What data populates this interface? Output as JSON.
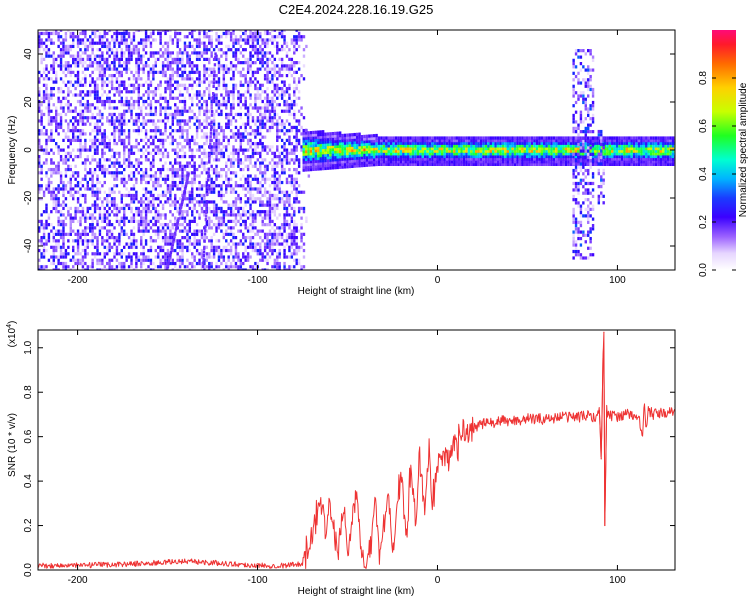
{
  "title": "C2E4.2024.228.16.19.G25",
  "colors": {
    "snr_line": "#ee3333",
    "axis": "#000000",
    "colormap": [
      "#ffffff",
      "#e9d9ff",
      "#b58cff",
      "#7a3cff",
      "#3b00ff",
      "#1028ff",
      "#00b4ff",
      "#00ffcc",
      "#20ff20",
      "#c8ff00",
      "#ffd000",
      "#ff7a00",
      "#ff2020",
      "#ff0a78"
    ]
  },
  "chart_data": [
    {
      "type": "heatmap",
      "name": "spectrogram",
      "xlabel": "Height of straight line (km)",
      "ylabel": "Frequency (Hz)",
      "xlim": [
        -222,
        132
      ],
      "ylim": [
        -50,
        50
      ],
      "xticks": [
        "-200",
        "-100",
        "0",
        "100"
      ],
      "xtick_values": [
        -200,
        -100,
        0,
        100
      ],
      "yticks": [
        "40",
        "20",
        "0",
        "-20",
        "-40"
      ],
      "ytick_values": [
        40,
        20,
        0,
        -20,
        -40
      ],
      "colorbar": {
        "label": "Normalized spectral amplitude",
        "range": [
          0,
          1
        ],
        "ticks": [
          "0.0",
          "0.2",
          "0.4",
          "0.6",
          "0.8"
        ],
        "tick_values": [
          0,
          0.2,
          0.4,
          0.6,
          0.8
        ]
      },
      "regions": [
        {
          "kind": "noise",
          "x_range": [
            -222,
            -72
          ],
          "freq_range": [
            -50,
            50
          ],
          "amplitude": 0.2
        },
        {
          "kind": "band",
          "x_range": [
            -75,
            132
          ],
          "center_freq": 0,
          "half_width_hz": 4,
          "amplitude_start": 0.55,
          "amplitude_peak": 0.9
        },
        {
          "kind": "burst",
          "x_range": [
            75,
            86
          ],
          "freq_range": [
            -45,
            42
          ],
          "amplitude": 0.2
        },
        {
          "kind": "burst",
          "x_range": [
            89,
            92
          ],
          "freq_range": [
            -22,
            8
          ],
          "amplitude": 0.2
        }
      ],
      "streaks": [
        {
          "x": [
            -131,
            -124
          ],
          "freq_range": [
            -50,
            40
          ]
        },
        {
          "x": [
            -151,
            -139
          ],
          "freq_range": [
            -50,
            -10
          ]
        }
      ]
    },
    {
      "type": "line",
      "name": "snr",
      "xlabel": "Height of straight line (km)",
      "ylabel": "SNR (10 * v/v)",
      "multiplier": "(x10",
      "multiplier_exp": "4",
      "multiplier_close": ")",
      "xlim": [
        -222,
        132
      ],
      "ylim": [
        0,
        1.08
      ],
      "xticks": [
        "-200",
        "-100",
        "0",
        "100"
      ],
      "xtick_values": [
        -200,
        -100,
        0,
        100
      ],
      "yticks": [
        "0.0",
        "0.2",
        "0.4",
        "0.6",
        "0.8",
        "1.0"
      ],
      "ytick_values": [
        0,
        0.2,
        0.4,
        0.6,
        0.8,
        1.0
      ],
      "series": [
        {
          "x": [
            -222,
            -200,
            -180,
            -160,
            -140,
            -120,
            -100,
            -85,
            -75,
            -70,
            -65,
            -62,
            -60,
            -57,
            -55,
            -52,
            -50,
            -47,
            -45,
            -42,
            -40,
            -37,
            -35,
            -32,
            -30,
            -27,
            -25,
            -22,
            -20,
            -17,
            -15,
            -12,
            -10,
            -7,
            -5,
            -3,
            0,
            3,
            6,
            10,
            14,
            18,
            22,
            26,
            30,
            35,
            40,
            50,
            60,
            70,
            80,
            85,
            88,
            90,
            91,
            92,
            92.5,
            93,
            94,
            95,
            98,
            105,
            112,
            114,
            115,
            116,
            117,
            120,
            132
          ],
          "y": [
            0.02,
            0.02,
            0.025,
            0.03,
            0.04,
            0.03,
            0.02,
            0.02,
            0.03,
            0.12,
            0.35,
            0.2,
            0.3,
            0.15,
            0.08,
            0.3,
            0.05,
            0.26,
            0.33,
            0.08,
            0.02,
            0.1,
            0.35,
            0.06,
            0.2,
            0.37,
            0.1,
            0.33,
            0.42,
            0.15,
            0.45,
            0.2,
            0.52,
            0.25,
            0.55,
            0.28,
            0.48,
            0.5,
            0.53,
            0.56,
            0.6,
            0.63,
            0.65,
            0.66,
            0.66,
            0.67,
            0.67,
            0.68,
            0.68,
            0.69,
            0.69,
            0.7,
            0.68,
            0.72,
            0.5,
            0.95,
            1.07,
            0.2,
            0.72,
            0.7,
            0.69,
            0.7,
            0.69,
            0.58,
            0.77,
            0.62,
            0.72,
            0.7,
            0.71
          ]
        }
      ]
    }
  ]
}
